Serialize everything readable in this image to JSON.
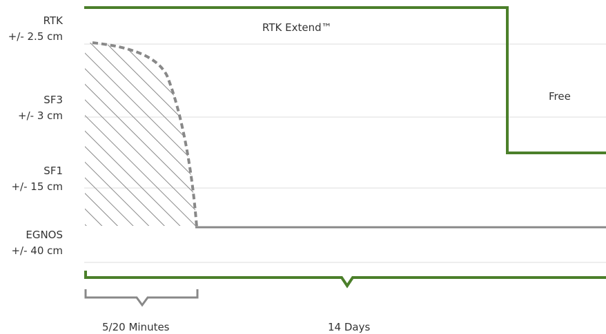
{
  "chart_data": {
    "type": "line",
    "title": "",
    "xlabel": "",
    "ylabel": "",
    "y_levels": [
      {
        "name": "RTK",
        "accuracy": "+/- 2.5 cm"
      },
      {
        "name": "SF3",
        "accuracy": "+/- 3 cm"
      },
      {
        "name": "SF1",
        "accuracy": "+/- 15 cm"
      },
      {
        "name": "EGNOS",
        "accuracy": "+/- 40 cm"
      }
    ],
    "grid": "horizontal",
    "series": [
      {
        "label": "RTK Extend™",
        "color": "#4b7f2a",
        "style": "solid",
        "levels": [
          "RTK",
          "SF3"
        ]
      },
      {
        "label": "",
        "color": "#888888",
        "style": "dashed-then-solid",
        "levels": [
          "RTK",
          "EGNOS"
        ],
        "hatched_area": true
      }
    ],
    "annotations": [
      {
        "text": "RTK Extend™"
      },
      {
        "text": "Free"
      }
    ],
    "time_brackets": [
      {
        "label": "5/20 Minutes",
        "color": "#888888"
      },
      {
        "label": "14 Days",
        "color": "#4b7f2a"
      }
    ]
  }
}
